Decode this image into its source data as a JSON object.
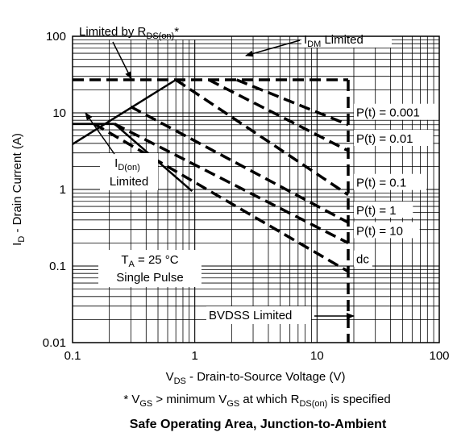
{
  "chart_data": {
    "type": "line",
    "title": "Safe Operating Area, Junction-to-Ambient",
    "xlabel": {
      "main": "V",
      "sub": "DS",
      "rest": " - Drain-to-Source Voltage (V)"
    },
    "ylabel": {
      "main": "I",
      "sub": "D",
      "rest": " - Drain Current (A)"
    },
    "footnote": {
      "p1": "* V",
      "s1": "GS",
      "p2": " > minimum V",
      "s2": "GS",
      "p3": " at which R",
      "s3": "DS(on)",
      "p4": " is specified"
    },
    "x_scale": "log",
    "y_scale": "log",
    "xlim": [
      0.1,
      100
    ],
    "ylim": [
      0.01,
      100
    ],
    "x_ticks": [
      {
        "value": 0.1,
        "label": "0.1"
      },
      {
        "value": 1,
        "label": "1"
      },
      {
        "value": 10,
        "label": "10"
      },
      {
        "value": 100,
        "label": "100"
      }
    ],
    "y_ticks": [
      {
        "value": 0.01,
        "label": "0.01"
      },
      {
        "value": 0.1,
        "label": "0.1"
      },
      {
        "value": 1,
        "label": "1"
      },
      {
        "value": 10,
        "label": "10"
      },
      {
        "value": 100,
        "label": "100"
      }
    ],
    "grid": true,
    "series": [
      {
        "name": "P(t) = 0.001",
        "points": [
          [
            2.2,
            27
          ],
          [
            18,
            7.0
          ]
        ]
      },
      {
        "name": "P(t) = 0.01",
        "points": [
          [
            1.3,
            27
          ],
          [
            18,
            3.2
          ]
        ]
      },
      {
        "name": "P(t) = 0.1",
        "points": [
          [
            0.7,
            27
          ],
          [
            18,
            0.85
          ]
        ]
      },
      {
        "name": "P(t) = 1",
        "points": [
          [
            0.3,
            12
          ],
          [
            18,
            0.37
          ]
        ]
      },
      {
        "name": "P(t) = 10",
        "points": [
          [
            0.22,
            7.2
          ],
          [
            18,
            0.2
          ]
        ]
      },
      {
        "name": "dc",
        "points": [
          [
            0.15,
            7.2
          ],
          [
            18,
            0.085
          ]
        ]
      },
      {
        "name": "",
        "role": "limit",
        "points": [
          [
            0.1,
            27
          ],
          [
            18,
            27
          ]
        ]
      },
      {
        "name": "",
        "role": "limit",
        "points": [
          [
            18,
            27
          ],
          [
            18,
            0.01
          ]
        ]
      }
    ],
    "solid_lines": [
      {
        "points": [
          [
            0.1,
            3.9
          ],
          [
            0.7,
            27
          ]
        ]
      },
      {
        "points": [
          [
            0.1,
            7.2
          ],
          [
            0.22,
            7.2
          ]
        ]
      },
      {
        "points": [
          [
            0.22,
            7.2
          ],
          [
            0.95,
            0.95
          ]
        ]
      }
    ],
    "annotations": [
      {
        "p": "Limited by R",
        "s": "DS(on)",
        "t": "*"
      },
      {
        "p": "I",
        "s": "DM",
        "t": " Limited"
      },
      {
        "p": "I",
        "s": "D(on)",
        "t": "",
        "line2": "Limited"
      },
      {
        "p": "T",
        "s": "A",
        "t": " = 25 °C",
        "line2": "Single Pulse"
      },
      {
        "p": "BVDSS Limited",
        "s": "",
        "t": ""
      }
    ]
  }
}
